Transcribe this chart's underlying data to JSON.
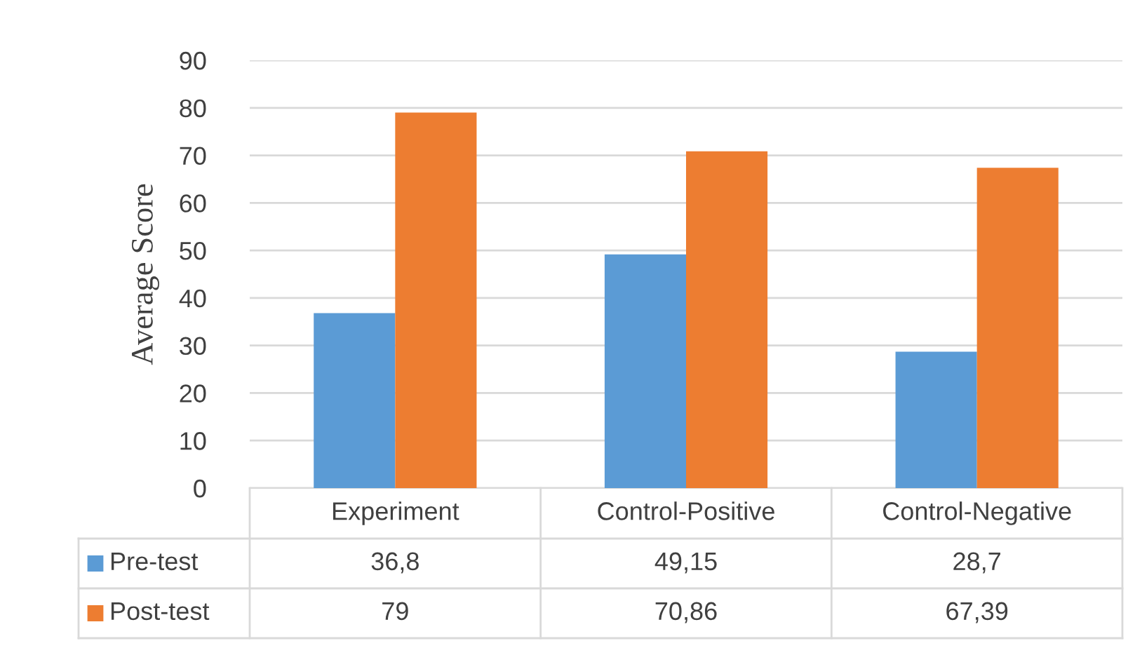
{
  "chart_data": {
    "type": "bar",
    "ylabel": "Average Score",
    "categories": [
      "Experiment",
      "Control-Positive",
      "Control-Negative"
    ],
    "series": [
      {
        "name": "Pre-test",
        "color": "#5b9bd5",
        "values": [
          36.8,
          49.15,
          28.7
        ],
        "value_labels": [
          "36,8",
          "49,15",
          "28,7"
        ]
      },
      {
        "name": "Post-test",
        "color": "#ed7d31",
        "values": [
          79,
          70.86,
          67.39
        ],
        "value_labels": [
          "79",
          "70,86",
          "67,39"
        ]
      }
    ],
    "ylim": [
      0,
      90
    ],
    "yticks": [
      0,
      10,
      20,
      30,
      40,
      50,
      60,
      70,
      80,
      90
    ],
    "grid": "y",
    "legend": "bottom"
  }
}
